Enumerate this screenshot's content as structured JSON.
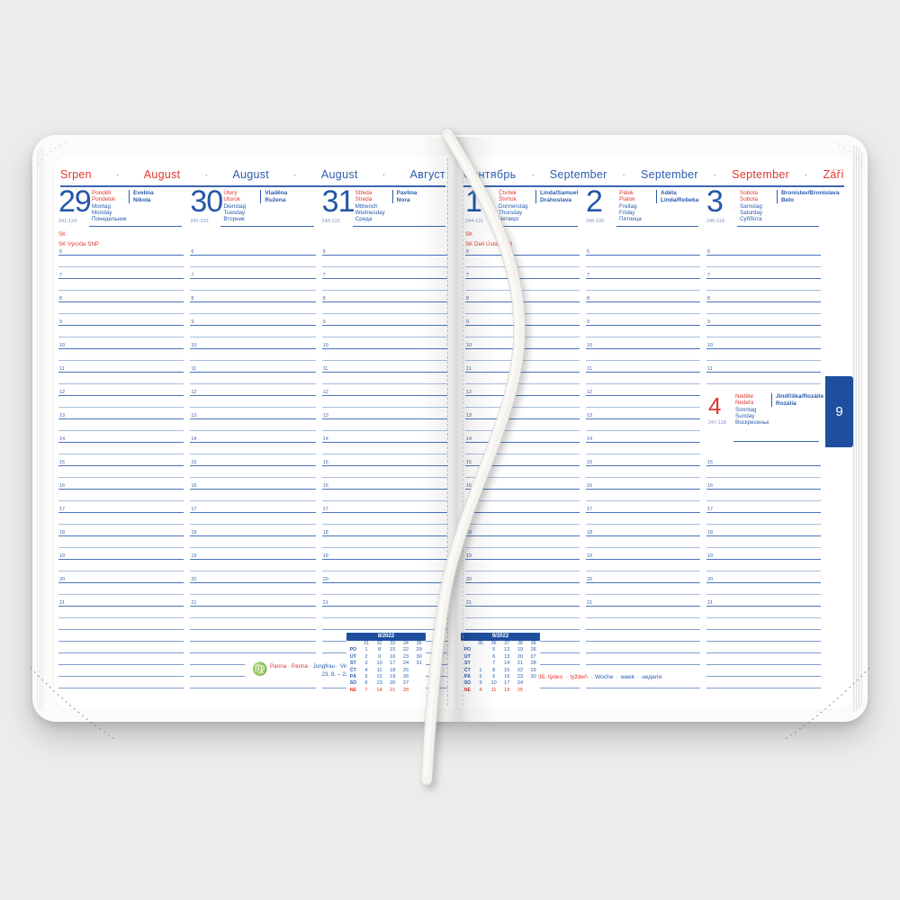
{
  "separator": "·",
  "colors": {
    "blue": "#2b5cad",
    "dark_blue": "#2457a8",
    "red": "#e0372e",
    "hour_line": "#4a74ba",
    "half_line": "#a9bddf",
    "tab_bg": "#1d4f9e"
  },
  "hours": [
    "6",
    "7",
    "8",
    "9",
    "10",
    "11",
    "12",
    "13",
    "14",
    "15",
    "16",
    "17",
    "18",
    "19",
    "20",
    "21"
  ],
  "left_page": {
    "month_row": [
      {
        "label": "Srpen",
        "color": "red"
      },
      {
        "label": "August",
        "color": "red"
      },
      {
        "label": "August",
        "color": "blue"
      },
      {
        "label": "August",
        "color": "blue"
      },
      {
        "label": "Август",
        "color": "blue"
      }
    ],
    "days": [
      {
        "number": "29",
        "day_of_year": "241-124",
        "day_names_cz_sk": [
          "Pondělí",
          "Pondelok"
        ],
        "day_names_other": [
          "Montag",
          "Monday",
          "Понедельник"
        ],
        "name_days": [
          "Evelína",
          "Nikola"
        ],
        "holiday_mark": "SK",
        "holiday": "SK  Výročie SNP"
      },
      {
        "number": "30",
        "day_of_year": "242-123",
        "day_names_cz_sk": [
          "Úterý",
          "Utorok"
        ],
        "day_names_other": [
          "Dienstag",
          "Tuesday",
          "Вторник"
        ],
        "name_days": [
          "Vladěna",
          "Ružena"
        ],
        "holiday_mark": "",
        "holiday": ""
      },
      {
        "number": "31",
        "day_of_year": "243-122",
        "day_names_cz_sk": [
          "Středa",
          "Streda"
        ],
        "day_names_other": [
          "Mittwoch",
          "Wednesday",
          "Среда"
        ],
        "name_days": [
          "Pavlína",
          "Nora"
        ],
        "holiday_mark": "",
        "holiday": ""
      }
    ],
    "zodiac": {
      "icon_glyph": "♍",
      "red_text": "Panna · Panna ·",
      "blue_text": "Jungfrau · Virgo · Дева",
      "dates": "23. 8. – 22. 9."
    },
    "mini_calendar": {
      "title": "8/2022",
      "week_numbers": [
        "31",
        "32",
        "33",
        "34",
        "35"
      ],
      "day_rows": [
        {
          "label": "PO",
          "cells": [
            "1",
            "8",
            "15",
            "22",
            "29"
          ],
          "red": false
        },
        {
          "label": "ÚT",
          "cells": [
            "2",
            "9",
            "16",
            "23",
            "30"
          ],
          "red": false
        },
        {
          "label": "ST",
          "cells": [
            "3",
            "10",
            "17",
            "24",
            "31"
          ],
          "red": false
        },
        {
          "label": "ČT",
          "cells": [
            "4",
            "11",
            "18",
            "25",
            ""
          ],
          "red": false
        },
        {
          "label": "PÁ",
          "cells": [
            "5",
            "12",
            "19",
            "26",
            ""
          ],
          "red": false
        },
        {
          "label": "SO",
          "cells": [
            "6",
            "13",
            "20",
            "27",
            ""
          ],
          "red": false
        },
        {
          "label": "NE",
          "cells": [
            "7",
            "14",
            "21",
            "28",
            ""
          ],
          "red": true
        }
      ]
    }
  },
  "right_page": {
    "month_row": [
      {
        "label": "Сентябрь",
        "color": "blue"
      },
      {
        "label": "September",
        "color": "blue"
      },
      {
        "label": "September",
        "color": "blue"
      },
      {
        "label": "September",
        "color": "red"
      },
      {
        "label": "Září",
        "color": "red"
      }
    ],
    "days": [
      {
        "number": "1",
        "day_of_year": "244-121",
        "day_names_cz_sk": [
          "Čtvrtek",
          "Štvrtok"
        ],
        "day_names_other": [
          "Donnerstag",
          "Thursday",
          "Четверг"
        ],
        "name_days": [
          "Linda/Samuel",
          "Drahoslava"
        ],
        "holiday_mark": "SK",
        "holiday": "SK  Deň Ústavy SR"
      },
      {
        "number": "2",
        "day_of_year": "245-120",
        "day_names_cz_sk": [
          "Pátek",
          "Piatok"
        ],
        "day_names_other": [
          "Freitag",
          "Friday",
          "Пятница"
        ],
        "name_days": [
          "Adéla",
          "Linda/Rebeka"
        ],
        "holiday_mark": "",
        "holiday": ""
      },
      {
        "number": "3",
        "day_of_year": "246-119",
        "day_names_cz_sk": [
          "Sobota",
          "Sobota"
        ],
        "day_names_other": [
          "Samstag",
          "Saturday",
          "Суббота"
        ],
        "name_days": [
          "Bronislav/Bronislava",
          "Belo"
        ],
        "holiday_mark": "",
        "holiday": ""
      }
    ],
    "sunday": {
      "number": "4",
      "day_of_year": "247-118",
      "day_names_cz_sk": [
        "Neděle",
        "Nedeľa"
      ],
      "day_names_other": [
        "Sonntag",
        "Sunday",
        "Воскресенье"
      ],
      "name_days": [
        "Jindřiška/Rozálie",
        "Rozália"
      ]
    },
    "week_line": [
      {
        "text": "35. týden",
        "color": "red"
      },
      {
        "text": "·",
        "color": "blue"
      },
      {
        "text": "týždeň",
        "color": "red"
      },
      {
        "text": "·",
        "color": "blue"
      },
      {
        "text": "Woche",
        "color": "blue"
      },
      {
        "text": "·",
        "color": "blue"
      },
      {
        "text": "week",
        "color": "blue"
      },
      {
        "text": "·",
        "color": "blue"
      },
      {
        "text": "неделя",
        "color": "blue"
      }
    ],
    "mini_calendar": {
      "title": "9/2022",
      "week_numbers": [
        "35",
        "36",
        "37",
        "38",
        "39"
      ],
      "day_rows": [
        {
          "label": "PO",
          "cells": [
            "",
            "5",
            "12",
            "19",
            "26"
          ],
          "red": false
        },
        {
          "label": "ÚT",
          "cells": [
            "",
            "6",
            "13",
            "20",
            "27"
          ],
          "red": false
        },
        {
          "label": "ST",
          "cells": [
            "",
            "7",
            "14",
            "21",
            "28"
          ],
          "red": false
        },
        {
          "label": "ČT",
          "cells": [
            "1",
            "8",
            "15",
            "22",
            "29"
          ],
          "red": false
        },
        {
          "label": "PÁ",
          "cells": [
            "2",
            "9",
            "16",
            "23",
            "30"
          ],
          "red": false
        },
        {
          "label": "SO",
          "cells": [
            "3",
            "10",
            "17",
            "24",
            ""
          ],
          "red": false
        },
        {
          "label": "NE",
          "cells": [
            "4",
            "11",
            "18",
            "25",
            ""
          ],
          "red": true
        }
      ]
    },
    "month_tab": "9"
  }
}
